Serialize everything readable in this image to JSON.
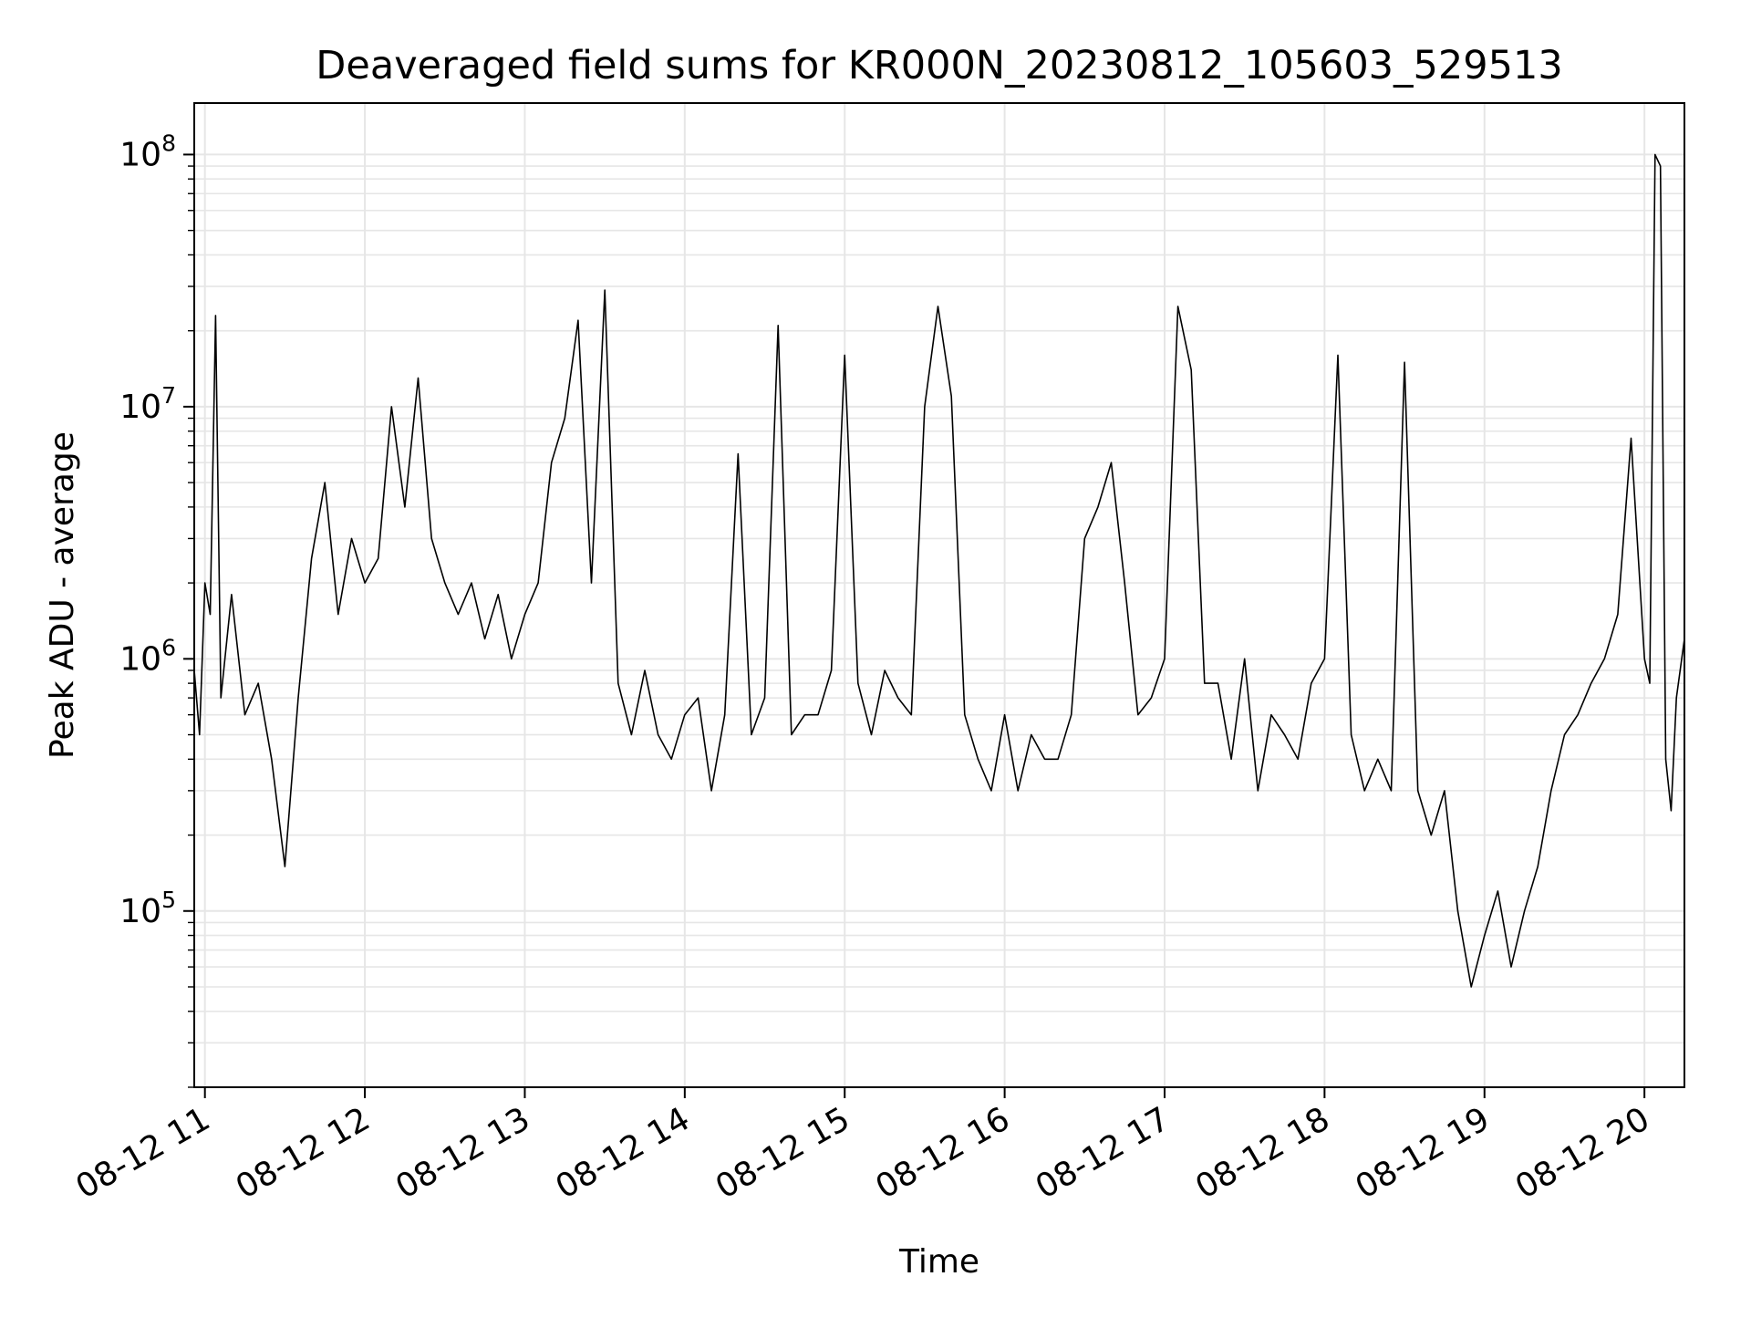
{
  "chart_data": {
    "type": "line",
    "title": "Deaveraged field sums for KR000N_20230812_105603_529513",
    "xlabel": "Time",
    "ylabel": "Peak ADU - average",
    "yscale": "log",
    "ylim": [
      20000,
      160000000
    ],
    "xlim": [
      "2023-08-12 10:56",
      "2023-08-12 20:15"
    ],
    "grid": true,
    "legend": "none",
    "line_color": "#000000",
    "grid_color": "#e6e6e6",
    "x_ticks": [
      {
        "value": "2023-08-12 11:00",
        "label": "08-12 11"
      },
      {
        "value": "2023-08-12 12:00",
        "label": "08-12 12"
      },
      {
        "value": "2023-08-12 13:00",
        "label": "08-12 13"
      },
      {
        "value": "2023-08-12 14:00",
        "label": "08-12 14"
      },
      {
        "value": "2023-08-12 15:00",
        "label": "08-12 15"
      },
      {
        "value": "2023-08-12 16:00",
        "label": "08-12 16"
      },
      {
        "value": "2023-08-12 17:00",
        "label": "08-12 17"
      },
      {
        "value": "2023-08-12 18:00",
        "label": "08-12 18"
      },
      {
        "value": "2023-08-12 19:00",
        "label": "08-12 19"
      },
      {
        "value": "2023-08-12 20:00",
        "label": "08-12 20"
      }
    ],
    "y_ticks": [
      {
        "value": 100000,
        "base": "10",
        "exp": "5"
      },
      {
        "value": 1000000,
        "base": "10",
        "exp": "6"
      },
      {
        "value": 10000000,
        "base": "10",
        "exp": "7"
      },
      {
        "value": 100000000,
        "base": "10",
        "exp": "8"
      }
    ],
    "series": [
      {
        "x": [
          "2023-08-12 10:56",
          "2023-08-12 10:58",
          "2023-08-12 11:00",
          "2023-08-12 11:02",
          "2023-08-12 11:04",
          "2023-08-12 11:06",
          "2023-08-12 11:10",
          "2023-08-12 11:15",
          "2023-08-12 11:20",
          "2023-08-12 11:25",
          "2023-08-12 11:30",
          "2023-08-12 11:35",
          "2023-08-12 11:40",
          "2023-08-12 11:45",
          "2023-08-12 11:50",
          "2023-08-12 11:55",
          "2023-08-12 12:00",
          "2023-08-12 12:05",
          "2023-08-12 12:10",
          "2023-08-12 12:15",
          "2023-08-12 12:20",
          "2023-08-12 12:25",
          "2023-08-12 12:30",
          "2023-08-12 12:35",
          "2023-08-12 12:40",
          "2023-08-12 12:45",
          "2023-08-12 12:50",
          "2023-08-12 12:55",
          "2023-08-12 13:00",
          "2023-08-12 13:05",
          "2023-08-12 13:10",
          "2023-08-12 13:15",
          "2023-08-12 13:20",
          "2023-08-12 13:25",
          "2023-08-12 13:30",
          "2023-08-12 13:35",
          "2023-08-12 13:40",
          "2023-08-12 13:45",
          "2023-08-12 13:50",
          "2023-08-12 13:55",
          "2023-08-12 14:00",
          "2023-08-12 14:05",
          "2023-08-12 14:10",
          "2023-08-12 14:15",
          "2023-08-12 14:20",
          "2023-08-12 14:25",
          "2023-08-12 14:30",
          "2023-08-12 14:35",
          "2023-08-12 14:40",
          "2023-08-12 14:45",
          "2023-08-12 14:50",
          "2023-08-12 14:55",
          "2023-08-12 15:00",
          "2023-08-12 15:05",
          "2023-08-12 15:10",
          "2023-08-12 15:15",
          "2023-08-12 15:20",
          "2023-08-12 15:25",
          "2023-08-12 15:30",
          "2023-08-12 15:35",
          "2023-08-12 15:40",
          "2023-08-12 15:45",
          "2023-08-12 15:50",
          "2023-08-12 15:55",
          "2023-08-12 16:00",
          "2023-08-12 16:05",
          "2023-08-12 16:10",
          "2023-08-12 16:15",
          "2023-08-12 16:20",
          "2023-08-12 16:25",
          "2023-08-12 16:30",
          "2023-08-12 16:35",
          "2023-08-12 16:40",
          "2023-08-12 16:45",
          "2023-08-12 16:50",
          "2023-08-12 16:55",
          "2023-08-12 17:00",
          "2023-08-12 17:05",
          "2023-08-12 17:10",
          "2023-08-12 17:15",
          "2023-08-12 17:20",
          "2023-08-12 17:25",
          "2023-08-12 17:30",
          "2023-08-12 17:35",
          "2023-08-12 17:40",
          "2023-08-12 17:45",
          "2023-08-12 17:50",
          "2023-08-12 17:55",
          "2023-08-12 18:00",
          "2023-08-12 18:05",
          "2023-08-12 18:10",
          "2023-08-12 18:15",
          "2023-08-12 18:20",
          "2023-08-12 18:25",
          "2023-08-12 18:30",
          "2023-08-12 18:35",
          "2023-08-12 18:40",
          "2023-08-12 18:45",
          "2023-08-12 18:50",
          "2023-08-12 18:55",
          "2023-08-12 19:00",
          "2023-08-12 19:05",
          "2023-08-12 19:10",
          "2023-08-12 19:15",
          "2023-08-12 19:20",
          "2023-08-12 19:25",
          "2023-08-12 19:30",
          "2023-08-12 19:35",
          "2023-08-12 19:40",
          "2023-08-12 19:45",
          "2023-08-12 19:50",
          "2023-08-12 19:55",
          "2023-08-12 20:00",
          "2023-08-12 20:02",
          "2023-08-12 20:04",
          "2023-08-12 20:06",
          "2023-08-12 20:08",
          "2023-08-12 20:10",
          "2023-08-12 20:12",
          "2023-08-12 20:15"
        ],
        "y": [
          900000,
          500000,
          2000000,
          1500000,
          23000000,
          700000,
          1800000,
          600000,
          800000,
          400000,
          150000,
          700000,
          2500000,
          5000000,
          1500000,
          3000000,
          2000000,
          2500000,
          10000000,
          4000000,
          13000000,
          3000000,
          2000000,
          1500000,
          2000000,
          1200000,
          1800000,
          1000000,
          1500000,
          2000000,
          6000000,
          9000000,
          22000000,
          2000000,
          29000000,
          800000,
          500000,
          900000,
          500000,
          400000,
          600000,
          700000,
          300000,
          600000,
          6500000,
          500000,
          700000,
          21000000,
          500000,
          600000,
          600000,
          900000,
          16000000,
          800000,
          500000,
          900000,
          700000,
          600000,
          10000000,
          25000000,
          11000000,
          600000,
          400000,
          300000,
          600000,
          300000,
          500000,
          400000,
          400000,
          600000,
          3000000,
          4000000,
          6000000,
          2000000,
          600000,
          700000,
          1000000,
          25000000,
          14000000,
          800000,
          800000,
          400000,
          1000000,
          300000,
          600000,
          500000,
          400000,
          800000,
          1000000,
          16000000,
          500000,
          300000,
          400000,
          300000,
          15000000,
          300000,
          200000,
          300000,
          100000,
          50000,
          80000,
          120000,
          60000,
          100000,
          150000,
          300000,
          500000,
          600000,
          800000,
          1000000,
          1500000,
          7500000,
          1000000,
          800000,
          100000000,
          90000000,
          400000,
          250000,
          700000,
          1200000
        ]
      }
    ]
  }
}
